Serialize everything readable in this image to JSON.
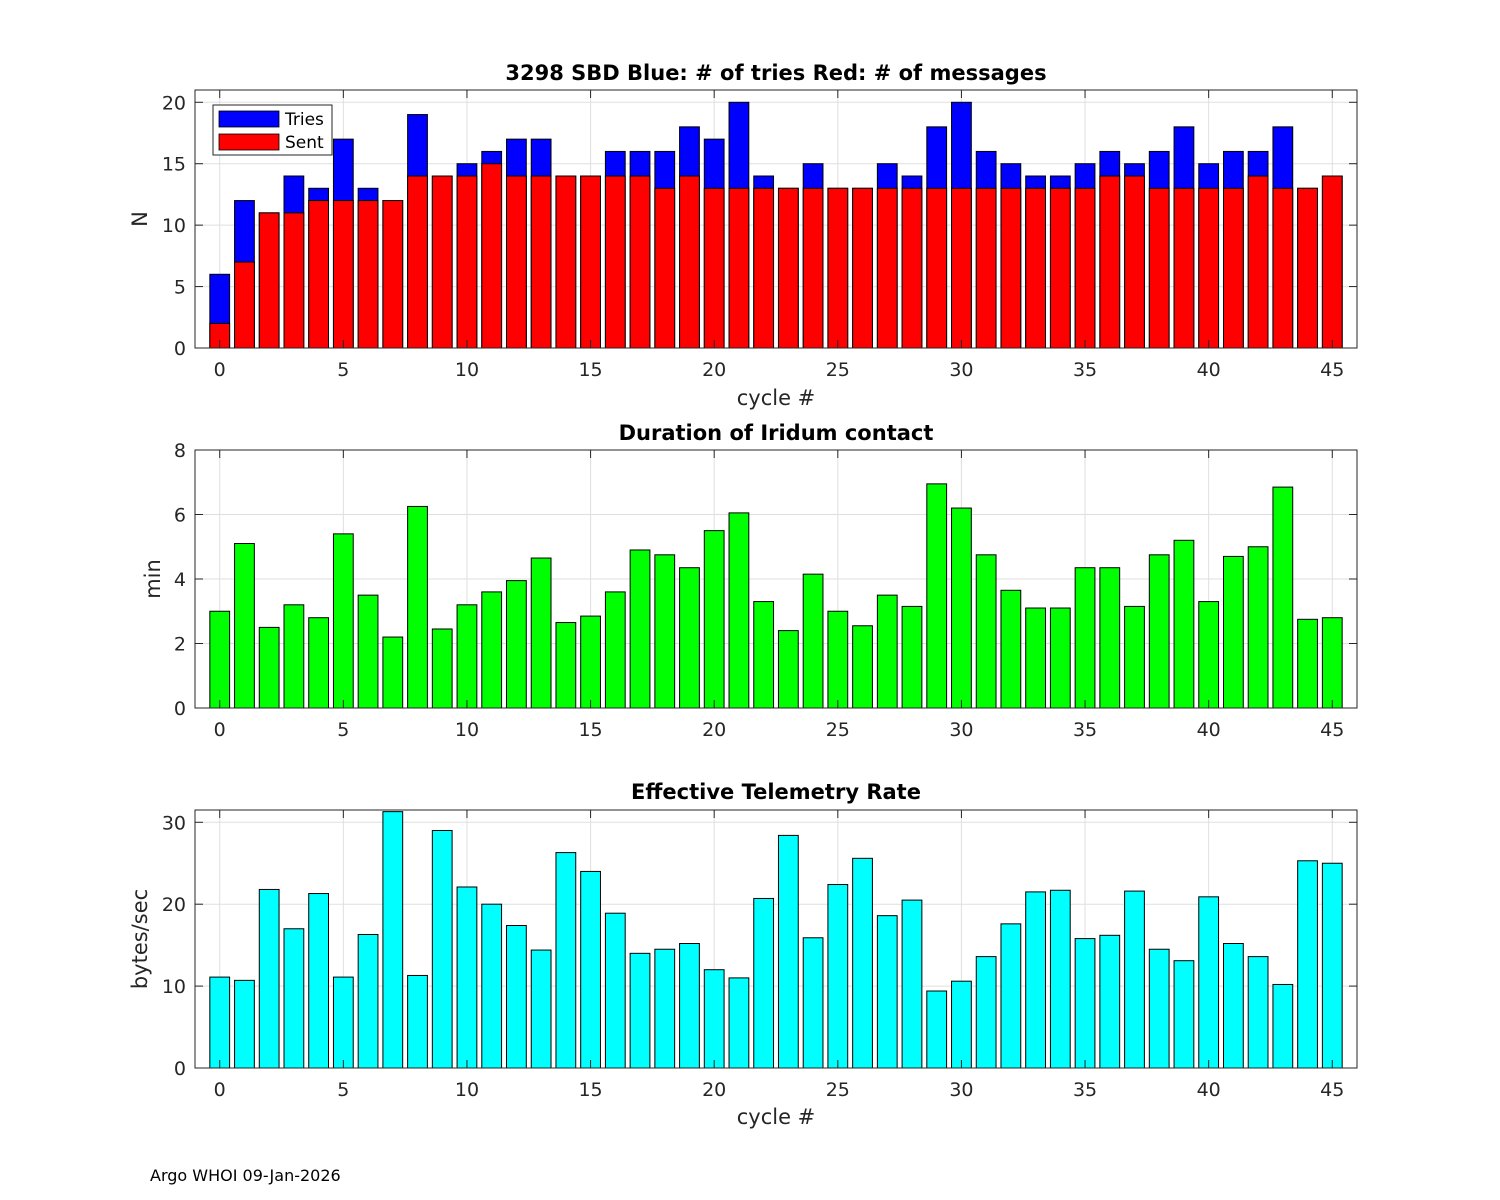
{
  "chart_data": [
    {
      "type": "bar",
      "stacked": "overlay",
      "title": "3298 SBD  Blue: # of tries   Red: # of messages",
      "xlabel": "cycle #",
      "ylabel": "N",
      "xlim": [
        -1,
        46
      ],
      "ylim": [
        0,
        21
      ],
      "xticks": [
        0,
        5,
        10,
        15,
        20,
        25,
        30,
        35,
        40,
        45
      ],
      "yticks": [
        0,
        5,
        10,
        15,
        20
      ],
      "grid": true,
      "legend": {
        "position": "top-left",
        "entries": [
          "Tries",
          "Sent"
        ]
      },
      "x": [
        0,
        1,
        2,
        3,
        4,
        5,
        6,
        7,
        8,
        9,
        10,
        11,
        12,
        13,
        14,
        15,
        16,
        17,
        18,
        19,
        20,
        21,
        22,
        23,
        24,
        25,
        26,
        27,
        28,
        29,
        30,
        31,
        32,
        33,
        34,
        35,
        36,
        37,
        38,
        39,
        40,
        41,
        42,
        43,
        44,
        45
      ],
      "series": [
        {
          "name": "Tries",
          "color": "#0000ff",
          "values": [
            6,
            12,
            11,
            14,
            13,
            17,
            13,
            12,
            19,
            14,
            15,
            16,
            17,
            17,
            14,
            14,
            16,
            16,
            16,
            18,
            17,
            20,
            14,
            13,
            15,
            13,
            13,
            15,
            14,
            18,
            20,
            16,
            15,
            14,
            14,
            15,
            16,
            15,
            16,
            18,
            15,
            16,
            16,
            18,
            13,
            14
          ]
        },
        {
          "name": "Sent",
          "color": "#ff0000",
          "values": [
            2,
            7,
            11,
            11,
            12,
            12,
            12,
            12,
            14,
            14,
            14,
            15,
            14,
            14,
            14,
            14,
            14,
            14,
            13,
            14,
            13,
            13,
            13,
            13,
            13,
            13,
            13,
            13,
            13,
            13,
            13,
            13,
            13,
            13,
            13,
            13,
            14,
            14,
            13,
            13,
            13,
            13,
            14,
            13,
            13,
            14
          ]
        }
      ]
    },
    {
      "type": "bar",
      "title": "Duration of Iridum contact",
      "xlabel": "",
      "ylabel": "min",
      "xlim": [
        -1,
        46
      ],
      "ylim": [
        0,
        8
      ],
      "xticks": [
        0,
        5,
        10,
        15,
        20,
        25,
        30,
        35,
        40,
        45
      ],
      "yticks": [
        0,
        2,
        4,
        6,
        8
      ],
      "grid": true,
      "x": [
        -1,
        0,
        1,
        2,
        3,
        4,
        5,
        6,
        7,
        8,
        9,
        10,
        11,
        12,
        13,
        14,
        15,
        16,
        17,
        18,
        19,
        20,
        21,
        22,
        23,
        24,
        25,
        26,
        27,
        28,
        29,
        30,
        31,
        32,
        33,
        34,
        35,
        36,
        37,
        38,
        39,
        40,
        41,
        42,
        43,
        44,
        45
      ],
      "series": [
        {
          "name": "duration",
          "color": "#00ff00",
          "values": [
            0,
            3.0,
            5.1,
            2.5,
            3.2,
            2.8,
            5.4,
            3.5,
            2.2,
            6.25,
            2.45,
            3.2,
            3.6,
            3.95,
            4.65,
            2.65,
            2.85,
            3.6,
            4.9,
            4.75,
            4.35,
            5.5,
            6.05,
            3.3,
            2.4,
            4.15,
            3.0,
            2.55,
            3.5,
            3.15,
            6.95,
            6.2,
            4.75,
            3.65,
            3.1,
            3.1,
            4.35,
            4.35,
            3.15,
            4.75,
            5.2,
            3.3,
            4.7,
            5.0,
            6.85,
            2.75,
            2.8
          ]
        }
      ]
    },
    {
      "type": "bar",
      "title": "Effective Telemetry Rate",
      "xlabel": "cycle #",
      "ylabel": "bytes/sec",
      "xlim": [
        -1,
        46
      ],
      "ylim": [
        0,
        31.5
      ],
      "xticks": [
        0,
        5,
        10,
        15,
        20,
        25,
        30,
        35,
        40,
        45
      ],
      "yticks": [
        0,
        10,
        20,
        30
      ],
      "grid": true,
      "x": [
        0,
        1,
        2,
        3,
        4,
        5,
        6,
        7,
        8,
        9,
        10,
        11,
        12,
        13,
        14,
        15,
        16,
        17,
        18,
        19,
        20,
        21,
        22,
        23,
        24,
        25,
        26,
        27,
        28,
        29,
        30,
        31,
        32,
        33,
        34,
        35,
        36,
        37,
        38,
        39,
        40,
        41,
        42,
        43,
        44,
        45
      ],
      "series": [
        {
          "name": "rate",
          "color": "#00ffff",
          "values": [
            11.1,
            10.7,
            21.8,
            17.0,
            21.3,
            11.1,
            16.3,
            31.3,
            11.3,
            29.0,
            22.1,
            20.0,
            17.4,
            14.4,
            26.3,
            24.0,
            18.9,
            14.0,
            14.5,
            15.2,
            12.0,
            11.0,
            20.7,
            28.4,
            15.9,
            22.4,
            25.6,
            18.6,
            20.5,
            9.4,
            10.6,
            13.6,
            17.6,
            21.5,
            21.7,
            15.8,
            16.2,
            21.6,
            14.5,
            13.1,
            20.9,
            15.2,
            13.6,
            10.2,
            25.3,
            25.0
          ]
        }
      ]
    }
  ],
  "footer": "Argo WHOI 09-Jan-2026"
}
